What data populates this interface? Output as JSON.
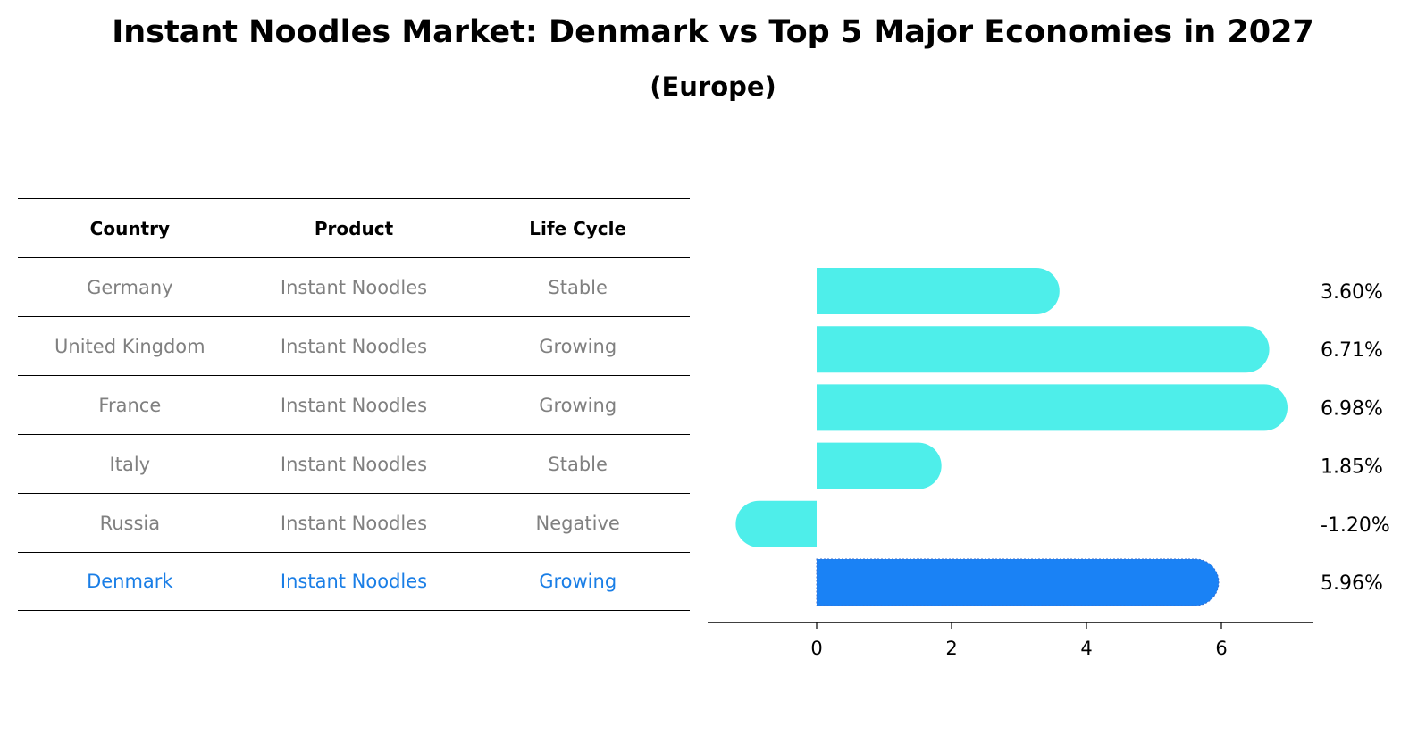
{
  "title": "Instant Noodles Market: Denmark vs Top 5 Major Economies in 2027",
  "subtitle": "(Europe)",
  "table": {
    "headers": [
      "Country",
      "Product",
      "Life Cycle"
    ],
    "rows": [
      [
        "Germany",
        "Instant Noodles",
        "Stable"
      ],
      [
        "United Kingdom",
        "Instant Noodles",
        "Growing"
      ],
      [
        "France",
        "Instant Noodles",
        "Growing"
      ],
      [
        "Italy",
        "Instant Noodles",
        "Stable"
      ],
      [
        "Russia",
        "Instant Noodles",
        "Negative"
      ],
      [
        "Denmark",
        "Instant Noodles",
        "Growing"
      ]
    ],
    "highlight_row": 5
  },
  "chart_data": {
    "type": "bar",
    "orientation": "horizontal",
    "categories": [
      "Germany",
      "United Kingdom",
      "France",
      "Italy",
      "Russia",
      "Denmark"
    ],
    "values": [
      3.6,
      6.71,
      6.98,
      1.85,
      -1.2,
      5.96
    ],
    "value_labels": [
      "3.60%",
      "6.71%",
      "6.98%",
      "1.85%",
      "-1.20%",
      "5.96%"
    ],
    "xticks": [
      0,
      2,
      4,
      6
    ],
    "xlim": [
      -1.6,
      7.4
    ],
    "colors": {
      "default": "#4eeeea",
      "highlight": "#1a82f5"
    },
    "highlight_index": 5,
    "grid": false
  }
}
